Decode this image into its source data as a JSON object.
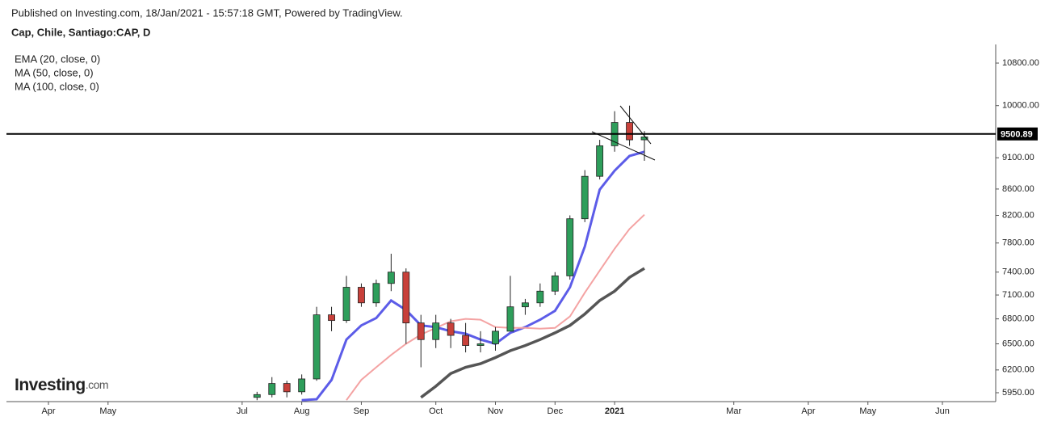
{
  "header": {
    "published": "Published on Investing.com, 18/Jan/2021 - 15:57:18 GMT, Powered by TradingView.",
    "symbol": "Cap, Chile, Santiago:CAP, D",
    "logo": "Investing",
    "logo_suffix": ".com"
  },
  "chart_data": {
    "type": "candlestick",
    "log_scale": true,
    "categories": [
      "Apr",
      null,
      null,
      null,
      "May",
      null,
      null,
      null,
      null,
      null,
      null,
      null,
      null,
      "Jul",
      null,
      null,
      null,
      "Aug",
      null,
      null,
      null,
      "Sep",
      null,
      null,
      null,
      null,
      "Oct",
      null,
      null,
      null,
      "Nov",
      null,
      null,
      null,
      "Dec",
      null,
      null,
      null,
      "2021",
      null,
      null,
      null,
      null,
      null,
      null,
      null,
      "Mar",
      null,
      null,
      null,
      null,
      "Apr",
      null,
      null,
      null,
      "May",
      null,
      null,
      null,
      null,
      "Jun"
    ],
    "candles": {
      "up_color": "#2e9e5b",
      "down_color": "#c8403a",
      "open": [
        null,
        null,
        null,
        null,
        null,
        null,
        null,
        null,
        null,
        null,
        null,
        null,
        null,
        null,
        5900,
        5930,
        6050,
        5960,
        6100,
        6850,
        6780,
        7200,
        7000,
        7250,
        7400,
        6750,
        6550,
        6750,
        6600,
        6480,
        6500,
        6650,
        6950,
        7000,
        7150,
        7350,
        8150,
        8800,
        9300,
        9700,
        9400,
        null,
        null,
        null,
        null,
        null,
        null,
        null,
        null,
        null,
        null,
        null,
        null,
        null,
        null,
        null,
        null,
        null,
        null,
        null,
        null
      ],
      "high": [
        null,
        null,
        null,
        null,
        null,
        null,
        null,
        null,
        null,
        null,
        null,
        null,
        null,
        null,
        5960,
        6120,
        6080,
        6150,
        6950,
        6950,
        7350,
        7250,
        7300,
        7650,
        7450,
        6850,
        6850,
        6800,
        6750,
        6650,
        6700,
        7350,
        7050,
        7250,
        7400,
        8200,
        8900,
        9400,
        9900,
        10000,
        9550,
        null,
        null,
        null,
        null,
        null,
        null,
        null,
        null,
        null,
        null,
        null,
        null,
        null,
        null,
        null,
        null,
        null,
        null,
        null,
        null
      ],
      "low": [
        null,
        null,
        null,
        null,
        null,
        null,
        null,
        null,
        null,
        null,
        null,
        null,
        null,
        null,
        5870,
        5900,
        5900,
        5930,
        6080,
        6650,
        6750,
        6950,
        6950,
        7150,
        6500,
        6230,
        6450,
        6450,
        6400,
        6400,
        6420,
        6650,
        6850,
        6950,
        7100,
        7300,
        8100,
        8750,
        9200,
        9300,
        9050,
        null,
        null,
        null,
        null,
        null,
        null,
        null,
        null,
        null,
        null,
        null,
        null,
        null,
        null,
        null,
        null,
        null,
        null,
        null,
        null
      ],
      "close": [
        null,
        null,
        null,
        null,
        null,
        null,
        null,
        null,
        null,
        null,
        null,
        null,
        null,
        null,
        5930,
        6050,
        5960,
        6100,
        6850,
        6780,
        7200,
        7000,
        7250,
        7400,
        6750,
        6550,
        6750,
        6600,
        6480,
        6500,
        6650,
        6950,
        7000,
        7150,
        7350,
        8150,
        8800,
        9300,
        9700,
        9400,
        9450,
        null,
        null,
        null,
        null,
        null,
        null,
        null,
        null,
        null,
        null,
        null,
        null,
        null,
        null,
        null,
        null,
        null,
        null,
        null,
        null
      ]
    },
    "series": [
      {
        "name": "EMA (20, close, 0)",
        "color": "#5c5ce8",
        "width": 3,
        "values": [
          null,
          null,
          null,
          null,
          null,
          null,
          null,
          null,
          null,
          null,
          null,
          null,
          null,
          null,
          null,
          null,
          null,
          5870,
          5880,
          6090,
          6550,
          6720,
          6810,
          7030,
          6910,
          6720,
          6700,
          6650,
          6620,
          6550,
          6500,
          6630,
          6700,
          6790,
          6900,
          7200,
          7750,
          8590,
          8890,
          9130,
          9200,
          null,
          null,
          null,
          null,
          null,
          null,
          null,
          null,
          null,
          null,
          null,
          null,
          null,
          null,
          null,
          null,
          null,
          null,
          null,
          null
        ]
      },
      {
        "name": "MA (50, close, 0)",
        "color": "#f4a3a3",
        "width": 2,
        "values": [
          null,
          null,
          null,
          null,
          null,
          null,
          null,
          null,
          null,
          null,
          null,
          null,
          null,
          null,
          null,
          null,
          null,
          null,
          null,
          null,
          5870,
          6090,
          6230,
          6370,
          6500,
          6610,
          6690,
          6770,
          6800,
          6790,
          6700,
          6690,
          6690,
          6680,
          6690,
          6830,
          7130,
          7420,
          7720,
          8000,
          8210,
          null,
          null,
          null,
          null,
          null,
          null,
          null,
          null,
          null,
          null,
          null,
          null,
          null,
          null,
          null,
          null,
          null,
          null,
          null,
          null
        ]
      },
      {
        "name": "MA (100, close, 0)",
        "color": "#555555",
        "width": 3.5,
        "values": [
          null,
          null,
          null,
          null,
          null,
          null,
          null,
          null,
          null,
          null,
          null,
          null,
          null,
          null,
          null,
          null,
          null,
          null,
          null,
          null,
          null,
          null,
          null,
          null,
          null,
          5900,
          6020,
          6160,
          6230,
          6270,
          6340,
          6420,
          6480,
          6550,
          6630,
          6720,
          6860,
          7030,
          7150,
          7330,
          7450,
          null,
          null,
          null,
          null,
          null,
          null,
          null,
          null,
          null,
          null,
          null,
          null,
          null,
          null,
          null,
          null,
          null,
          null,
          null,
          null
        ]
      }
    ],
    "price_line": 9500.89,
    "ylim": [
      5855,
      11170
    ],
    "yticks": [
      {
        "value": 5950,
        "label": "5950.00"
      },
      {
        "value": 6200,
        "label": "6200.00"
      },
      {
        "value": 6500,
        "label": "6500.00"
      },
      {
        "value": 6800,
        "label": "6800.00"
      },
      {
        "value": 7100,
        "label": "7100.00"
      },
      {
        "value": 7400,
        "label": "7400.00"
      },
      {
        "value": 7800,
        "label": "7800.00"
      },
      {
        "value": 8200,
        "label": "8200.00"
      },
      {
        "value": 8600,
        "label": "8600.00"
      },
      {
        "value": 9100,
        "label": "9100.00"
      },
      {
        "value": 10000,
        "label": "10000.00"
      },
      {
        "value": 10800,
        "label": "10800.00"
      }
    ],
    "grid": false
  }
}
